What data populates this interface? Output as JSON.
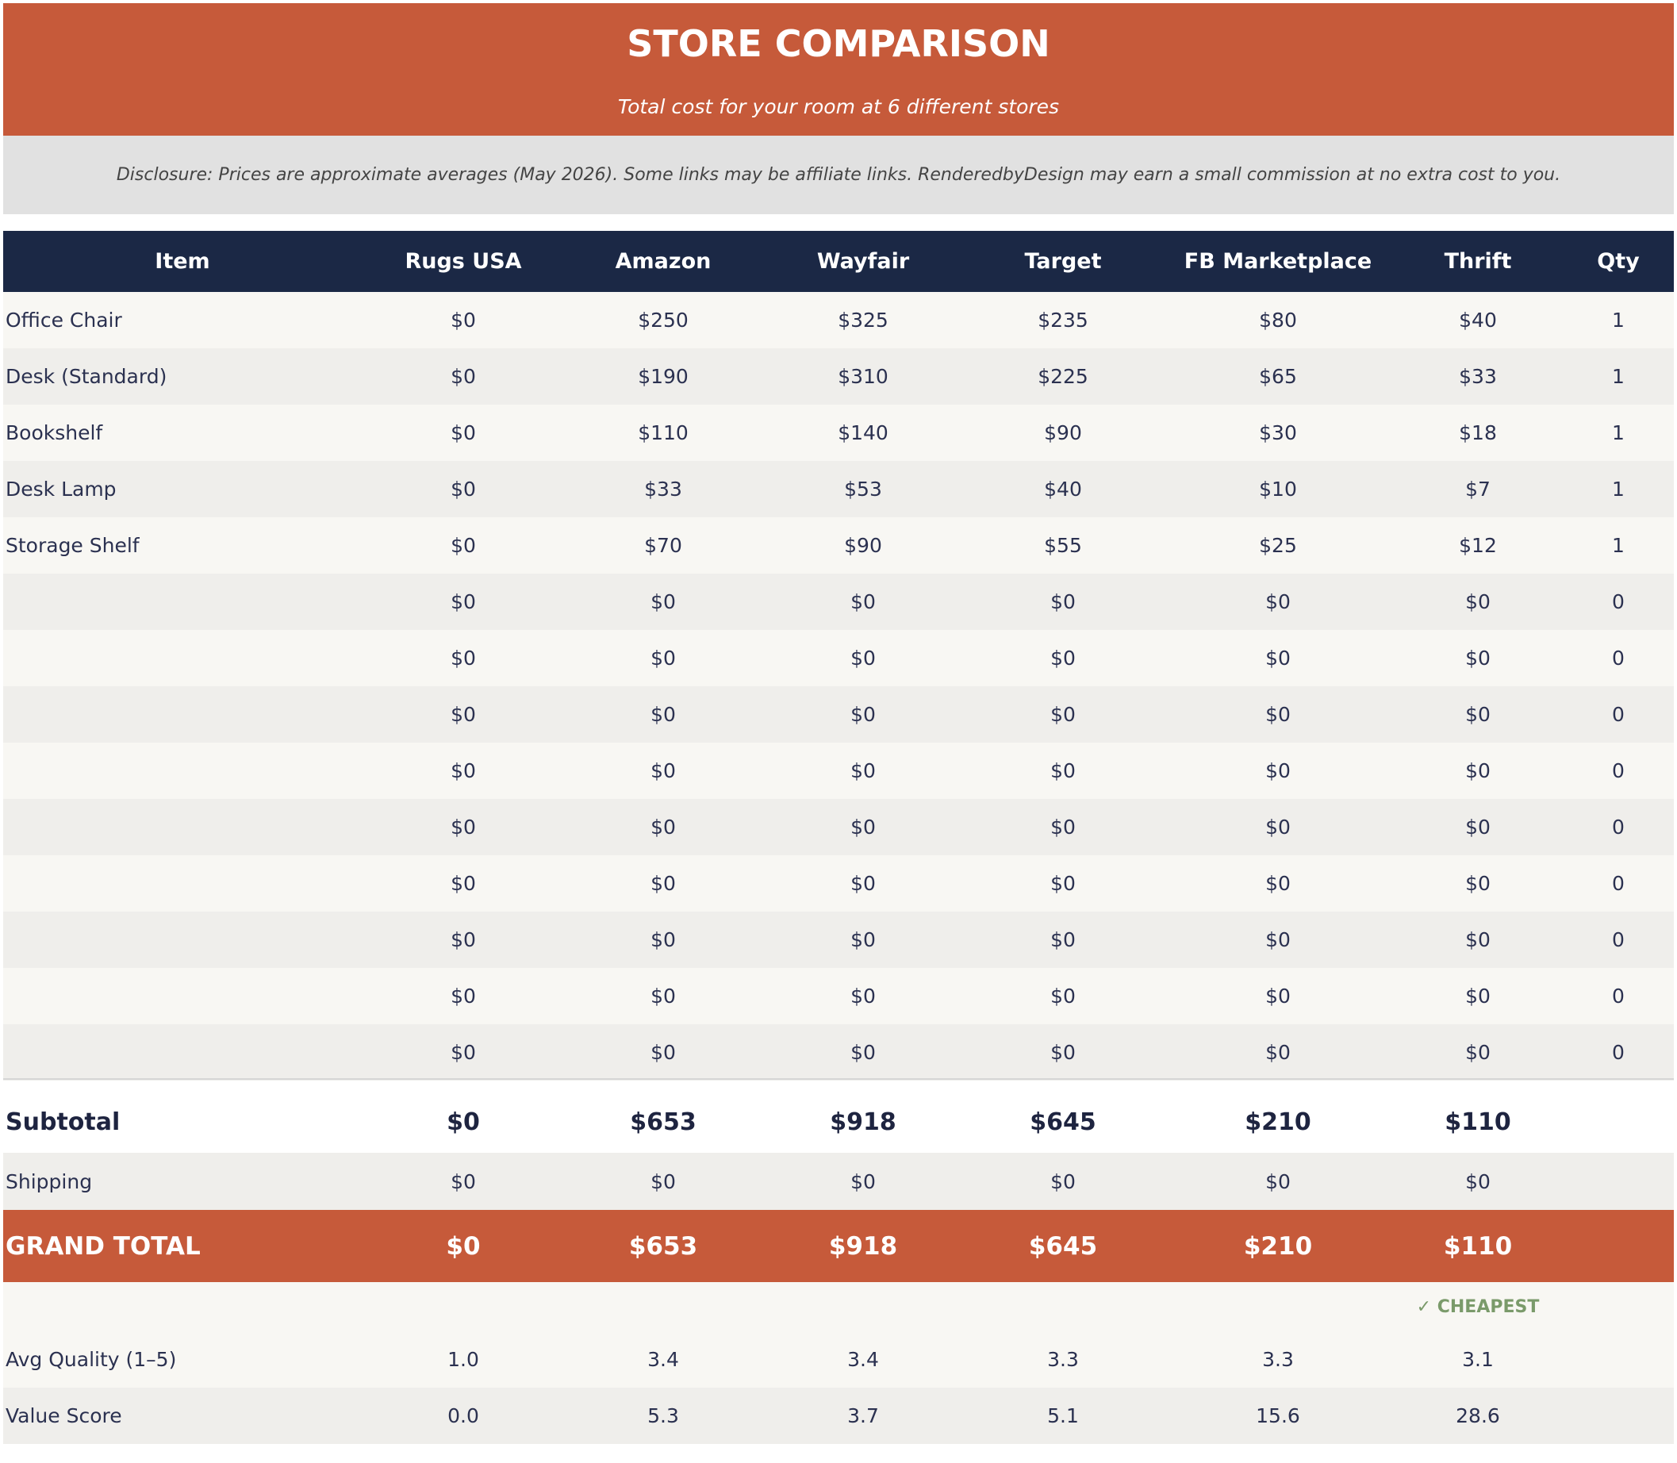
{
  "header": {
    "title": "STORE COMPARISON",
    "subtitle": "Total cost for your room at 6 different stores"
  },
  "disclosure": "Disclosure: Prices are approximate averages (May 2026). Some links may be affiliate links. RenderedbyDesign may earn a small commission at no extra cost to you.",
  "table": {
    "columns": [
      "Item",
      "Rugs USA",
      "Amazon",
      "Wayfair",
      "Target",
      "FB Marketplace",
      "Thrift",
      "Qty"
    ],
    "rows": [
      [
        "Office Chair",
        "$0",
        "$250",
        "$325",
        "$235",
        "$80",
        "$40",
        "1"
      ],
      [
        "Desk (Standard)",
        "$0",
        "$190",
        "$310",
        "$225",
        "$65",
        "$33",
        "1"
      ],
      [
        "Bookshelf",
        "$0",
        "$110",
        "$140",
        "$90",
        "$30",
        "$18",
        "1"
      ],
      [
        "Desk Lamp",
        "$0",
        "$33",
        "$53",
        "$40",
        "$10",
        "$7",
        "1"
      ],
      [
        "Storage Shelf",
        "$0",
        "$70",
        "$90",
        "$55",
        "$25",
        "$12",
        "1"
      ],
      [
        null,
        "$0",
        "$0",
        "$0",
        "$0",
        "$0",
        "$0",
        "0"
      ],
      [
        null,
        "$0",
        "$0",
        "$0",
        "$0",
        "$0",
        "$0",
        "0"
      ],
      [
        null,
        "$0",
        "$0",
        "$0",
        "$0",
        "$0",
        "$0",
        "0"
      ],
      [
        null,
        "$0",
        "$0",
        "$0",
        "$0",
        "$0",
        "$0",
        "0"
      ],
      [
        null,
        "$0",
        "$0",
        "$0",
        "$0",
        "$0",
        "$0",
        "0"
      ],
      [
        null,
        "$0",
        "$0",
        "$0",
        "$0",
        "$0",
        "$0",
        "0"
      ],
      [
        null,
        "$0",
        "$0",
        "$0",
        "$0",
        "$0",
        "$0",
        "0"
      ],
      [
        null,
        "$0",
        "$0",
        "$0",
        "$0",
        "$0",
        "$0",
        "0"
      ],
      [
        null,
        "$0",
        "$0",
        "$0",
        "$0",
        "$0",
        "$0",
        "0"
      ]
    ]
  },
  "summary": {
    "subtotal": [
      "Subtotal",
      "$0",
      "$653",
      "$918",
      "$645",
      "$210",
      "$110",
      null
    ],
    "shipping": [
      "Shipping",
      "$0",
      "$0",
      "$0",
      "$0",
      "$0",
      "$0",
      null
    ],
    "grand_total": [
      "GRAND TOTAL",
      "$0",
      "$653",
      "$918",
      "$645",
      "$210",
      "$110",
      null
    ]
  },
  "badges": [
    null,
    null,
    null,
    null,
    null,
    null,
    "✓ CHEAPEST",
    null
  ],
  "metrics": [
    [
      "Avg Quality (1–5)",
      "1.0",
      "3.4",
      "3.4",
      "3.3",
      "3.3",
      "3.1",
      null
    ],
    [
      "Value Score",
      "0.0",
      "5.3",
      "3.7",
      "5.1",
      "15.6",
      "28.6",
      null
    ]
  ]
}
